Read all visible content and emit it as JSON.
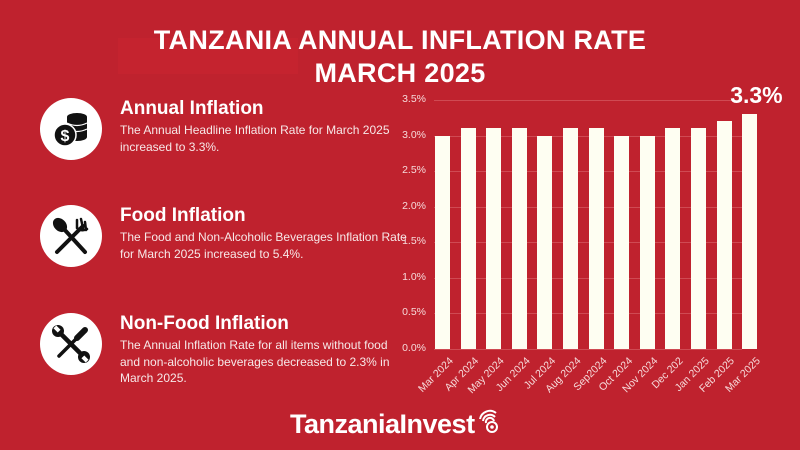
{
  "header": {
    "title_line1": "TANZANIA ANNUAL INFLATION RATE",
    "title_line2": "MARCH 2025"
  },
  "cards": [
    {
      "icon": "coins-dollar-icon",
      "title": "Annual Inflation",
      "text": "The Annual Headline Inflation Rate for March 2025 increased to 3.3%."
    },
    {
      "icon": "spoon-fork-icon",
      "title": "Food Inflation",
      "text": "The Food and Non-Alcoholic Beverages Inflation Rate for March 2025 increased to 5.4%."
    },
    {
      "icon": "wrench-screwdriver-icon",
      "title": "Non-Food Inflation",
      "text": "The Annual Inflation Rate for all items without food and non-alcoholic beverages decreased to 2.3% in March 2025."
    }
  ],
  "chart_data": {
    "type": "bar",
    "title": "Tanzania Annual Inflation Rate March 2025",
    "xlabel": "",
    "ylabel": "",
    "categories": [
      "Mar 2024",
      "Apr 2024",
      "May 2024",
      "Jun 2024",
      "Jul 2024",
      "Aug 2024",
      "Sep2024",
      "Oct 2024",
      "Nov 2024",
      "Dec 202",
      "Jan 2025",
      "Feb 2025",
      "Mar 2025"
    ],
    "values": [
      3.0,
      3.1,
      3.1,
      3.1,
      3.0,
      3.1,
      3.1,
      3.0,
      3.0,
      3.1,
      3.1,
      3.2,
      3.3
    ],
    "ylim": [
      0,
      3.5
    ],
    "yticks": [
      "0.0%",
      "0.5%",
      "1.0%",
      "1.5%",
      "2.0%",
      "2.5%",
      "3.0%",
      "3.5%"
    ],
    "grid": true,
    "annotation": "3.3%",
    "bar_color": "#fefef2",
    "background": "#bf222e"
  },
  "footer": {
    "logo_text": "TanzaniaInvest"
  }
}
